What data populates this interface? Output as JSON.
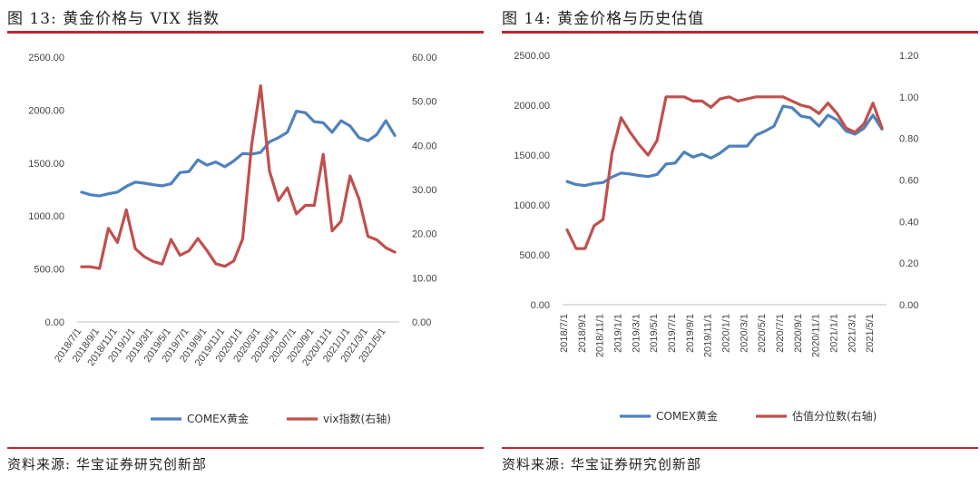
{
  "left": {
    "figure_title": "图 13:  黄金价格与 VIX 指数",
    "source": "资料来源:  华宝证券研究创新部",
    "chart_data": {
      "type": "line",
      "x": [
        "2018/7/1",
        "2018/8/1",
        "2018/9/1",
        "2018/10/1",
        "2018/11/1",
        "2018/12/1",
        "2019/1/1",
        "2019/2/1",
        "2019/3/1",
        "2019/4/1",
        "2019/5/1",
        "2019/6/1",
        "2019/7/1",
        "2019/8/1",
        "2019/9/1",
        "2019/10/1",
        "2019/11/1",
        "2019/12/1",
        "2020/1/1",
        "2020/2/1",
        "2020/3/1",
        "2020/4/1",
        "2020/5/1",
        "2020/6/1",
        "2020/7/1",
        "2020/8/1",
        "2020/9/1",
        "2020/10/1",
        "2020/11/1",
        "2020/12/1",
        "2021/1/1",
        "2021/2/1",
        "2021/3/1",
        "2021/4/1",
        "2021/5/1",
        "2021/6/1"
      ],
      "xticks": [
        "2018/7/1",
        "2018/9/1",
        "2018/11/1",
        "2019/1/1",
        "2019/3/1",
        "2019/5/1",
        "2019/7/1",
        "2019/9/1",
        "2019/11/1",
        "2020/1/1",
        "2020/3/1",
        "2020/5/1",
        "2020/7/1",
        "2020/9/1",
        "2020/11/1",
        "2021/1/1",
        "2021/3/1",
        "2021/5/1"
      ],
      "ylim": [
        0,
        2500
      ],
      "yticks": [
        "0.00",
        "500.00",
        "1000.00",
        "1500.00",
        "2000.00",
        "2500.00"
      ],
      "y2lim": [
        0,
        60
      ],
      "y2ticks": [
        "0.00",
        "10.00",
        "20.00",
        "30.00",
        "40.00",
        "50.00",
        "60.00"
      ],
      "series": [
        {
          "name": "COMEX黄金",
          "axis": "left",
          "color": "#4f81bd",
          "values": [
            1225,
            1200,
            1190,
            1210,
            1225,
            1280,
            1320,
            1310,
            1295,
            1285,
            1305,
            1410,
            1420,
            1530,
            1480,
            1510,
            1465,
            1520,
            1590,
            1585,
            1600,
            1700,
            1740,
            1790,
            1990,
            1975,
            1890,
            1880,
            1790,
            1900,
            1850,
            1740,
            1710,
            1770,
            1900,
            1760
          ]
        },
        {
          "name": "vix指数(右轴)",
          "axis": "right",
          "color": "#c0504d",
          "values": [
            12.5,
            12.5,
            12.1,
            21.2,
            18.0,
            25.4,
            16.6,
            14.8,
            13.7,
            13.1,
            18.7,
            15.1,
            16.1,
            18.9,
            16.2,
            13.2,
            12.6,
            13.8,
            18.8,
            40.1,
            53.5,
            34.2,
            27.5,
            30.4,
            24.5,
            26.4,
            26.4,
            38.0,
            20.6,
            22.8,
            33.1,
            27.9,
            19.4,
            18.6,
            16.8,
            15.8
          ]
        }
      ]
    }
  },
  "right": {
    "figure_title": "图 14:  黄金价格与历史估值",
    "source": "资料来源:  华宝证券研究创新部",
    "chart_data": {
      "type": "line",
      "x": [
        "2018/7/1",
        "2018/8/1",
        "2018/9/1",
        "2018/10/1",
        "2018/11/1",
        "2018/12/1",
        "2019/1/1",
        "2019/2/1",
        "2019/3/1",
        "2019/4/1",
        "2019/5/1",
        "2019/6/1",
        "2019/7/1",
        "2019/8/1",
        "2019/9/1",
        "2019/10/1",
        "2019/11/1",
        "2019/12/1",
        "2020/1/1",
        "2020/2/1",
        "2020/3/1",
        "2020/4/1",
        "2020/5/1",
        "2020/6/1",
        "2020/7/1",
        "2020/8/1",
        "2020/9/1",
        "2020/10/1",
        "2020/11/1",
        "2020/12/1",
        "2021/1/1",
        "2021/2/1",
        "2021/3/1",
        "2021/4/1",
        "2021/5/1",
        "2021/6/1"
      ],
      "xticks": [
        "2018/7/1",
        "2018/9/1",
        "2018/11/1",
        "2019/1/1",
        "2019/3/1",
        "2019/5/1",
        "2019/7/1",
        "2019/9/1",
        "2019/11/1",
        "2020/1/1",
        "2020/3/1",
        "2020/5/1",
        "2020/7/1",
        "2020/9/1",
        "2020/11/1",
        "2021/1/1",
        "2021/3/1",
        "2021/5/1"
      ],
      "ylim": [
        0,
        2500
      ],
      "yticks": [
        "0.00",
        "500.00",
        "1000.00",
        "1500.00",
        "2000.00",
        "2500.00"
      ],
      "y2lim": [
        0,
        1.2
      ],
      "y2ticks": [
        "0.00",
        "0.20",
        "0.40",
        "0.60",
        "0.80",
        "1.00",
        "1.20"
      ],
      "series": [
        {
          "name": "COMEX黄金",
          "axis": "left",
          "color": "#4f81bd",
          "values": [
            1235,
            1205,
            1195,
            1215,
            1225,
            1280,
            1320,
            1310,
            1295,
            1285,
            1305,
            1410,
            1420,
            1530,
            1480,
            1510,
            1470,
            1520,
            1590,
            1590,
            1590,
            1700,
            1740,
            1790,
            1990,
            1975,
            1890,
            1875,
            1790,
            1900,
            1850,
            1740,
            1710,
            1770,
            1900,
            1760
          ]
        },
        {
          "name": "估值分位数(右轴)",
          "axis": "right",
          "color": "#c0504d",
          "values": [
            0.36,
            0.27,
            0.27,
            0.38,
            0.41,
            0.73,
            0.9,
            0.83,
            0.77,
            0.72,
            0.79,
            1.0,
            1.0,
            1.0,
            0.98,
            0.98,
            0.95,
            0.99,
            1.0,
            0.98,
            0.99,
            1.0,
            1.0,
            1.0,
            1.0,
            0.98,
            0.96,
            0.95,
            0.92,
            0.97,
            0.92,
            0.85,
            0.83,
            0.87,
            0.97,
            0.85
          ]
        }
      ]
    }
  }
}
